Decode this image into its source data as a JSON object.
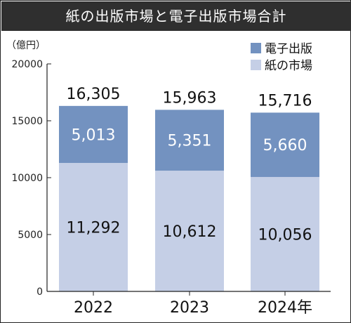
{
  "chart_data": {
    "type": "bar",
    "stacked": true,
    "title": "紙の出版市場と電子出版市場合計",
    "ylabel": "（億円）",
    "xlabel": "",
    "categories": [
      "2022",
      "2023",
      "2024年"
    ],
    "series": [
      {
        "name": "紙の市場",
        "values": [
          11292,
          10612,
          10056
        ],
        "value_labels": [
          "11,292",
          "10,612",
          "10,056"
        ],
        "color": "#c5cfe6"
      },
      {
        "name": "電子出版",
        "values": [
          5013,
          5351,
          5660
        ],
        "value_labels": [
          "5,013",
          "5,351",
          "5,660"
        ],
        "color": "#7392c0"
      }
    ],
    "totals": [
      16305,
      15963,
      15716
    ],
    "total_labels": [
      "16,305",
      "15,963",
      "15,716"
    ],
    "ylim": [
      0,
      20000
    ],
    "yticks": [
      0,
      5000,
      10000,
      15000,
      20000
    ],
    "ytick_labels": [
      "0",
      "5000",
      "10000",
      "15000",
      "20000"
    ],
    "grid": false,
    "legend_position": "top-right"
  }
}
